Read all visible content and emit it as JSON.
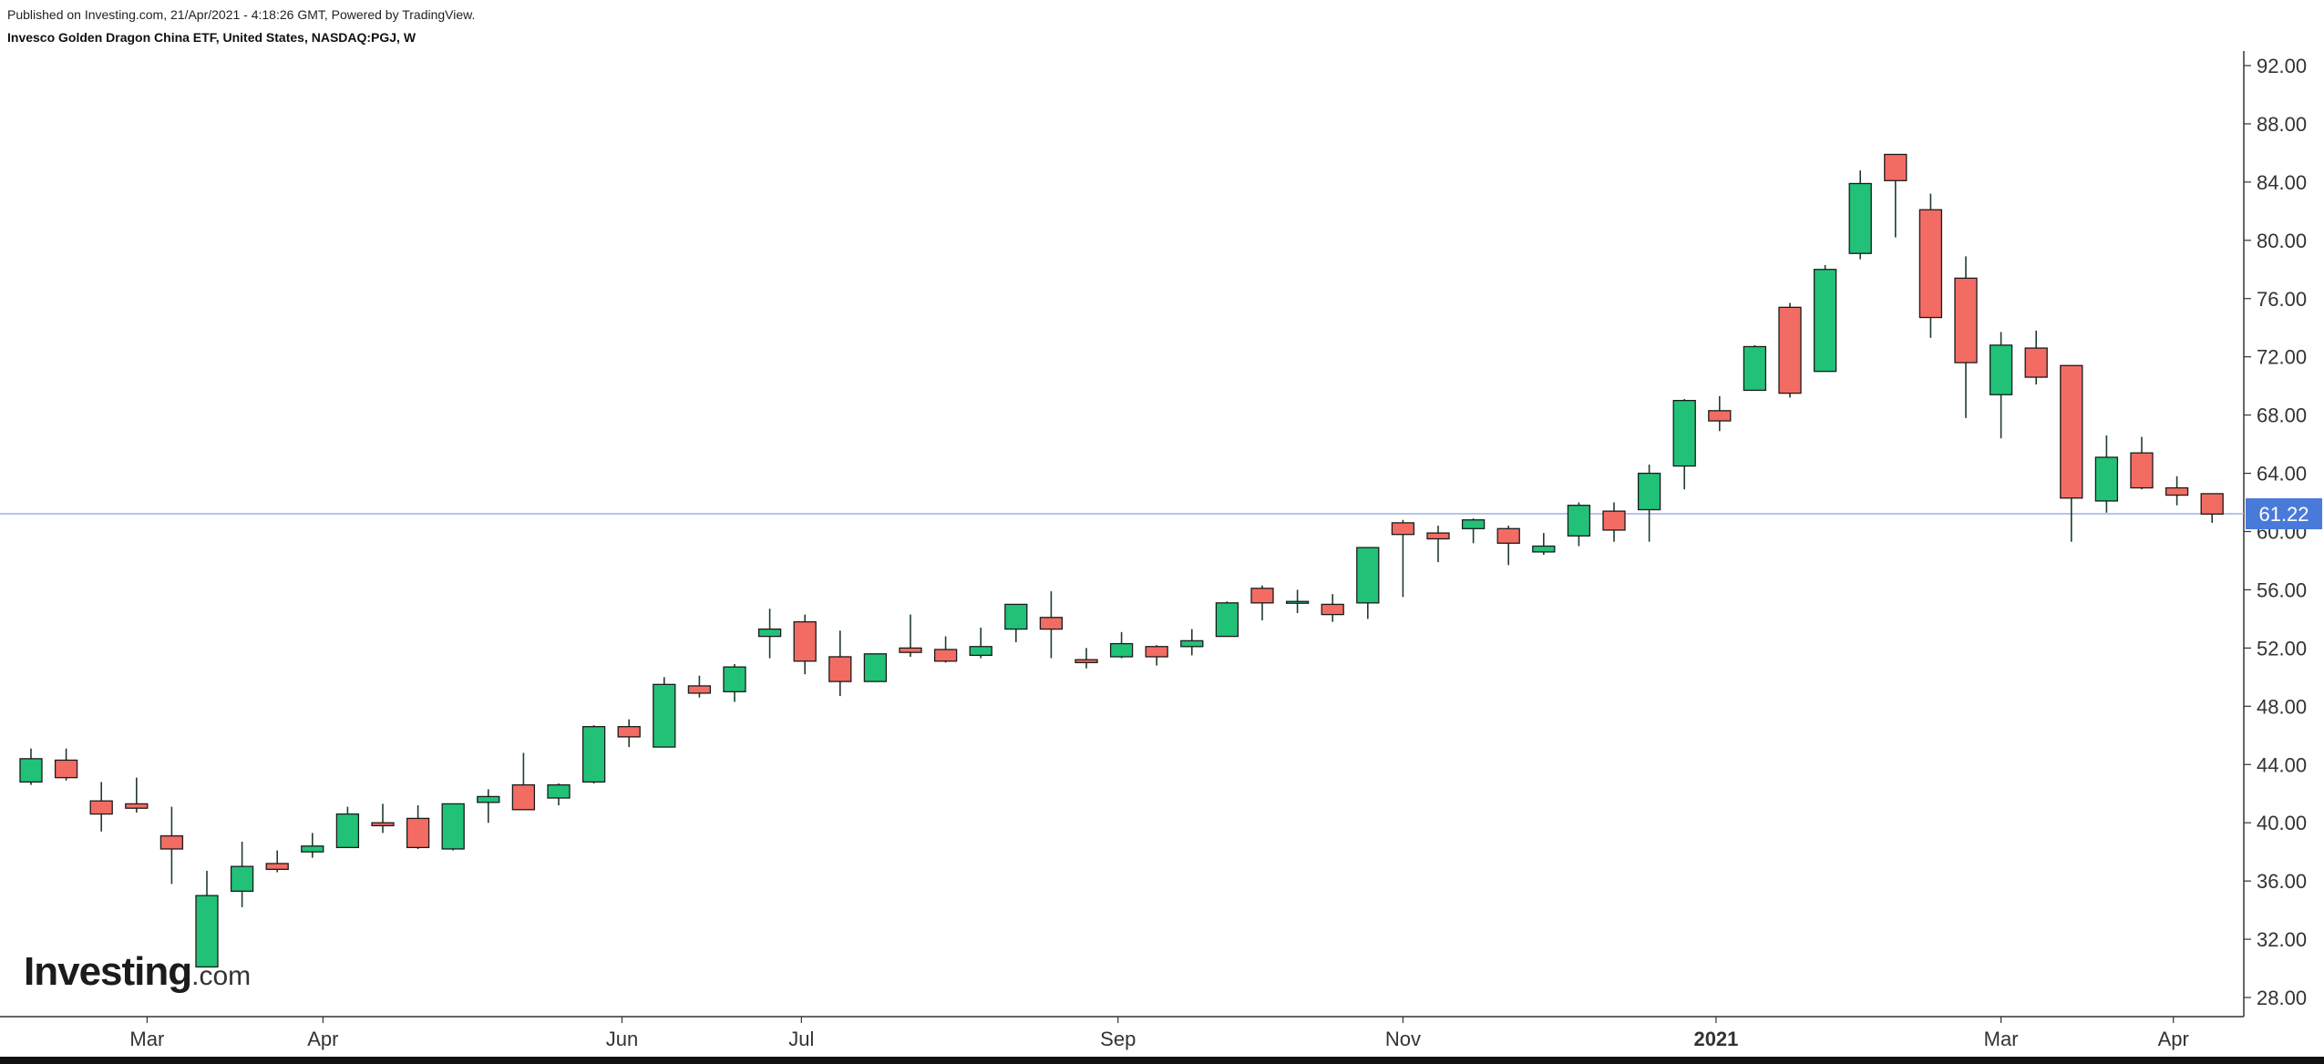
{
  "header": {
    "published": "Published on Investing.com, 21/Apr/2021 - 4:18:26 GMT, Powered by TradingView.",
    "title": "Invesco Golden Dragon China ETF, United States, NASDAQ:PGJ, W"
  },
  "logo": {
    "main": "Investing",
    "tail": ".com"
  },
  "colors": {
    "up": "#21c277",
    "down": "#f26c64",
    "wick": "#1f3d2a",
    "current_line": "#9bb2e6",
    "price_badge": "#4a7ad9",
    "axis": "#333333"
  },
  "chart_data": {
    "type": "candlestick",
    "interval": "W",
    "ylim": [
      26,
      93
    ],
    "y_ticks": [
      "92.00",
      "88.00",
      "84.00",
      "80.00",
      "76.00",
      "72.00",
      "68.00",
      "64.00",
      "60.00",
      "56.00",
      "52.00",
      "48.00",
      "44.00",
      "40.00",
      "36.00",
      "32.00",
      "28.00"
    ],
    "x_labels": [
      {
        "text": "Mar",
        "bar": 3.3,
        "bold": false
      },
      {
        "text": "Apr",
        "bar": 8.3,
        "bold": false
      },
      {
        "text": "Jun",
        "bar": 16.8,
        "bold": false
      },
      {
        "text": "Jul",
        "bar": 21.9,
        "bold": false
      },
      {
        "text": "Sep",
        "bar": 30.9,
        "bold": false
      },
      {
        "text": "Nov",
        "bar": 39.0,
        "bold": false
      },
      {
        "text": "2021",
        "bar": 47.9,
        "bold": true
      },
      {
        "text": "Mar",
        "bar": 56.0,
        "bold": false
      },
      {
        "text": "Apr",
        "bar": 60.9,
        "bold": false
      }
    ],
    "current_price": 61.22,
    "current_price_label": "61.22",
    "candles": [
      {
        "o": 42.8,
        "h": 45.1,
        "l": 42.6,
        "c": 44.4
      },
      {
        "o": 44.3,
        "h": 45.1,
        "l": 42.9,
        "c": 43.1
      },
      {
        "o": 41.5,
        "h": 42.8,
        "l": 39.4,
        "c": 40.6
      },
      {
        "o": 41.3,
        "h": 43.1,
        "l": 40.7,
        "c": 41.0
      },
      {
        "o": 39.1,
        "h": 41.1,
        "l": 35.8,
        "c": 38.2
      },
      {
        "o": 30.1,
        "h": 36.7,
        "l": 30.1,
        "c": 35.0
      },
      {
        "o": 35.3,
        "h": 38.7,
        "l": 34.2,
        "c": 37.0
      },
      {
        "o": 37.2,
        "h": 38.1,
        "l": 36.6,
        "c": 36.8
      },
      {
        "o": 38.0,
        "h": 39.3,
        "l": 37.6,
        "c": 38.4
      },
      {
        "o": 38.3,
        "h": 41.1,
        "l": 38.3,
        "c": 40.6
      },
      {
        "o": 40.0,
        "h": 41.3,
        "l": 39.3,
        "c": 39.8
      },
      {
        "o": 40.3,
        "h": 41.2,
        "l": 38.2,
        "c": 38.3
      },
      {
        "o": 38.2,
        "h": 41.3,
        "l": 38.1,
        "c": 41.3
      },
      {
        "o": 41.4,
        "h": 42.3,
        "l": 40.0,
        "c": 41.8
      },
      {
        "o": 42.6,
        "h": 44.8,
        "l": 40.9,
        "c": 40.9
      },
      {
        "o": 41.7,
        "h": 42.7,
        "l": 41.2,
        "c": 42.6
      },
      {
        "o": 42.8,
        "h": 46.7,
        "l": 42.7,
        "c": 46.6
      },
      {
        "o": 46.6,
        "h": 47.1,
        "l": 45.2,
        "c": 45.9
      },
      {
        "o": 45.2,
        "h": 50.0,
        "l": 45.2,
        "c": 49.5
      },
      {
        "o": 49.4,
        "h": 50.1,
        "l": 48.6,
        "c": 48.9
      },
      {
        "o": 49.0,
        "h": 50.9,
        "l": 48.3,
        "c": 50.7
      },
      {
        "o": 52.8,
        "h": 54.7,
        "l": 51.3,
        "c": 53.3
      },
      {
        "o": 53.8,
        "h": 54.3,
        "l": 50.2,
        "c": 51.1
      },
      {
        "o": 51.4,
        "h": 53.2,
        "l": 48.7,
        "c": 49.7
      },
      {
        "o": 49.7,
        "h": 51.6,
        "l": 49.7,
        "c": 51.6
      },
      {
        "o": 52.0,
        "h": 54.3,
        "l": 51.4,
        "c": 51.7
      },
      {
        "o": 51.9,
        "h": 52.8,
        "l": 51.0,
        "c": 51.1
      },
      {
        "o": 51.5,
        "h": 53.4,
        "l": 51.3,
        "c": 52.1
      },
      {
        "o": 53.3,
        "h": 55.0,
        "l": 52.4,
        "c": 55.0
      },
      {
        "o": 54.1,
        "h": 55.9,
        "l": 51.3,
        "c": 53.3
      },
      {
        "o": 51.2,
        "h": 52.0,
        "l": 50.6,
        "c": 51.0
      },
      {
        "o": 51.4,
        "h": 53.1,
        "l": 51.3,
        "c": 52.3
      },
      {
        "o": 52.1,
        "h": 52.2,
        "l": 50.8,
        "c": 51.4
      },
      {
        "o": 52.1,
        "h": 53.3,
        "l": 51.5,
        "c": 52.5
      },
      {
        "o": 52.8,
        "h": 55.2,
        "l": 52.8,
        "c": 55.1
      },
      {
        "o": 56.1,
        "h": 56.3,
        "l": 53.9,
        "c": 55.1
      },
      {
        "o": 55.1,
        "h": 56.0,
        "l": 54.4,
        "c": 55.2
      },
      {
        "o": 55.0,
        "h": 55.7,
        "l": 53.8,
        "c": 54.3
      },
      {
        "o": 55.1,
        "h": 58.9,
        "l": 54.0,
        "c": 58.9
      },
      {
        "o": 60.6,
        "h": 60.8,
        "l": 55.5,
        "c": 59.8
      },
      {
        "o": 59.9,
        "h": 60.4,
        "l": 57.9,
        "c": 59.5
      },
      {
        "o": 60.2,
        "h": 60.9,
        "l": 59.2,
        "c": 60.8
      },
      {
        "o": 60.2,
        "h": 60.4,
        "l": 57.7,
        "c": 59.2
      },
      {
        "o": 58.6,
        "h": 59.9,
        "l": 58.4,
        "c": 59.0
      },
      {
        "o": 59.7,
        "h": 62.0,
        "l": 59.0,
        "c": 61.8
      },
      {
        "o": 61.4,
        "h": 62.0,
        "l": 59.3,
        "c": 60.1
      },
      {
        "o": 61.5,
        "h": 64.6,
        "l": 59.3,
        "c": 64.0
      },
      {
        "o": 64.5,
        "h": 69.1,
        "l": 62.9,
        "c": 69.0
      },
      {
        "o": 68.3,
        "h": 69.3,
        "l": 66.9,
        "c": 67.6
      },
      {
        "o": 69.7,
        "h": 72.8,
        "l": 69.7,
        "c": 72.7
      },
      {
        "o": 75.4,
        "h": 75.7,
        "l": 69.2,
        "c": 69.5
      },
      {
        "o": 71.0,
        "h": 78.3,
        "l": 71.0,
        "c": 78.0
      },
      {
        "o": 79.1,
        "h": 84.8,
        "l": 78.7,
        "c": 83.9
      },
      {
        "o": 85.9,
        "h": 85.9,
        "l": 80.2,
        "c": 84.1
      },
      {
        "o": 82.1,
        "h": 83.2,
        "l": 73.3,
        "c": 74.7
      },
      {
        "o": 77.4,
        "h": 78.9,
        "l": 67.8,
        "c": 71.6
      },
      {
        "o": 69.4,
        "h": 73.7,
        "l": 66.4,
        "c": 72.8
      },
      {
        "o": 72.6,
        "h": 73.8,
        "l": 70.1,
        "c": 70.6
      },
      {
        "o": 71.4,
        "h": 71.4,
        "l": 59.3,
        "c": 62.3
      },
      {
        "o": 62.1,
        "h": 66.6,
        "l": 61.3,
        "c": 65.1
      },
      {
        "o": 65.4,
        "h": 66.5,
        "l": 62.9,
        "c": 63.0
      },
      {
        "o": 63.0,
        "h": 63.8,
        "l": 61.8,
        "c": 62.5
      },
      {
        "o": 62.6,
        "h": 62.6,
        "l": 60.6,
        "c": 61.2
      }
    ]
  }
}
